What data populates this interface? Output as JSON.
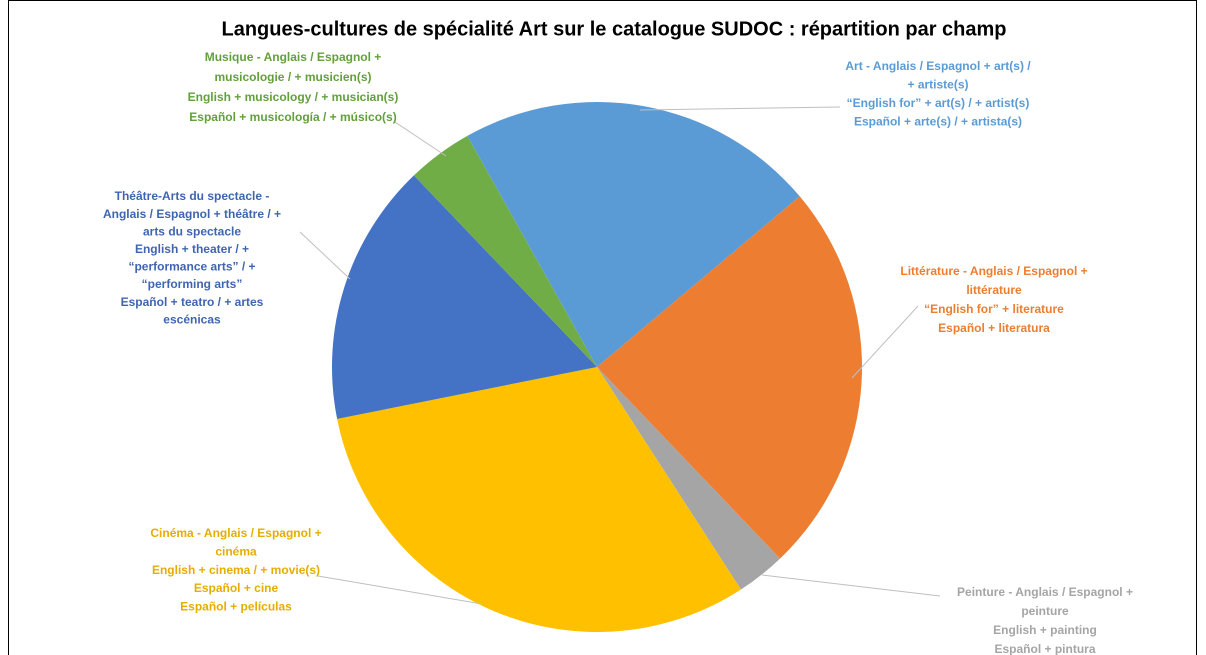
{
  "chart_data": {
    "type": "pie",
    "title": "Langues-cultures de spécialité Art sur le catalogue SUDOC : répartition par champ",
    "categories": [
      [
        "Art - Anglais / Espagnol + art(s) /",
        "+ artiste(s)",
        "“English for” + art(s) / + artist(s)",
        "Español + arte(s) / + artista(s)"
      ],
      [
        "Littérature  - Anglais / Espagnol +",
        "littérature",
        "“English for” + literature",
        "Español + literatura"
      ],
      [
        "Peinture - Anglais / Espagnol +",
        "peinture",
        "English + painting",
        "Español + pintura"
      ],
      [
        "Cinéma - Anglais / Espagnol +",
        "cinéma",
        "English + cinema / + movie(s)",
        "Español + cine",
        "Español + películas"
      ],
      [
        "Théâtre-Arts du spectacle -",
        "Anglais / Espagnol + théâtre / +",
        "arts du spectacle",
        "English + theater / +",
        "“performance arts” / +",
        "“performing arts”",
        "Español + teatro / + artes",
        "escénicas"
      ],
      [
        "Musique - Anglais / Espagnol +",
        "musicologie / + musicien(s)",
        "English + musicology / + musician(s)",
        "Español + musicología / + músico(s)"
      ]
    ],
    "values": [
      22,
      24,
      3,
      31,
      16,
      4
    ],
    "colors": [
      "#5b9bd5",
      "#ed7d31",
      "#a5a5a5",
      "#ffc000",
      "#4472c4",
      "#70ad47"
    ],
    "label_colors": [
      "#5b9bd5",
      "#ed7d31",
      "#a5a5a5",
      "#e6ad00",
      "#3f65b0",
      "#62a03c"
    ]
  }
}
